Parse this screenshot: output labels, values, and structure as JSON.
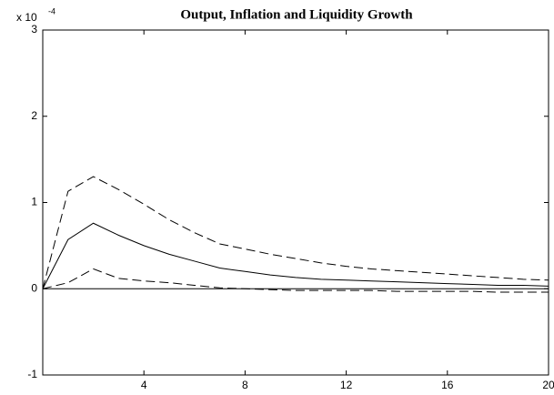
{
  "chart_data": {
    "type": "line",
    "title": "Output, Inflation and Liquidity Growth",
    "y_multiplier": {
      "base": "x 10",
      "exponent": "-4"
    },
    "x": [
      0,
      1,
      2,
      3,
      4,
      5,
      6,
      7,
      8,
      9,
      10,
      11,
      12,
      13,
      14,
      15,
      16,
      17,
      18,
      19,
      20
    ],
    "series": [
      {
        "color": "#000000",
        "dashed": true,
        "values": [
          0,
          1.13,
          1.3,
          1.15,
          0.98,
          0.8,
          0.65,
          0.52,
          0.46,
          0.4,
          0.35,
          0.3,
          0.26,
          0.23,
          0.21,
          0.19,
          0.17,
          0.15,
          0.13,
          0.11,
          0.1
        ]
      },
      {
        "color": "#000000",
        "dashed": false,
        "values": [
          0,
          0.57,
          0.76,
          0.62,
          0.5,
          0.4,
          0.32,
          0.24,
          0.2,
          0.16,
          0.13,
          0.11,
          0.1,
          0.09,
          0.08,
          0.07,
          0.06,
          0.05,
          0.04,
          0.04,
          0.03
        ]
      },
      {
        "color": "#000000",
        "dashed": true,
        "values": [
          0,
          0.07,
          0.23,
          0.12,
          0.09,
          0.07,
          0.04,
          0.01,
          0,
          -0.01,
          -0.02,
          -0.02,
          -0.02,
          -0.02,
          -0.03,
          -0.03,
          -0.03,
          -0.03,
          -0.04,
          -0.04,
          -0.04
        ]
      }
    ],
    "hline": 0,
    "xlim": [
      0,
      20
    ],
    "xticks": [
      4,
      8,
      12,
      16,
      20
    ],
    "ylim": [
      -1,
      3
    ],
    "yticks": [
      -1,
      0,
      1,
      2,
      3
    ],
    "grid": false
  }
}
